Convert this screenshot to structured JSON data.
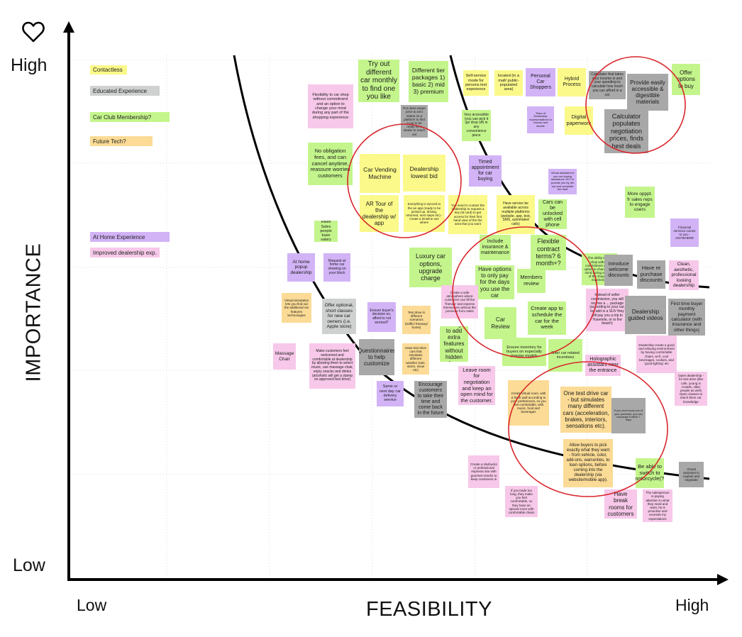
{
  "axes": {
    "y_title": "IMPORTANCE",
    "x_title": "FEASIBILITY",
    "y_high": "High",
    "y_low": "Low",
    "x_low": "Low",
    "x_high": "High",
    "corner_icon": "heart-outline-icon"
  },
  "legend": [
    "Contactless",
    "Educated Experience",
    "Car Club Membership?",
    "Future Tech?",
    "At Home Experience",
    "Improved dealership exp."
  ],
  "colors": {
    "y": "#fbf98a",
    "g": "#cfd0d0",
    "gr": "#a8a8a8",
    "lime": "#c4f58c",
    "o": "#fbdb95",
    "p": "#d2b3f6",
    "pk": "#f7c8e9",
    "lineBlack": "#000000",
    "circleRed": "#d8262c",
    "grid": "#dcdcdc"
  },
  "notes": [
    {
      "t": "Try out different car monthly to find one you like",
      "c": "lime"
    },
    {
      "t": "Different tier packages 1) basic 2) mid 3) premium",
      "c": "lime"
    },
    {
      "t": "Self-service mode for persons test experience",
      "c": "y"
    },
    {
      "t": "located (in a mall/ public-populated area)",
      "c": "y"
    },
    {
      "t": "Personal Car Shoppers",
      "c": "p"
    },
    {
      "t": "Hybrid Process",
      "c": "y"
    },
    {
      "t": "Calculator that takes your income in and your spending to calculate how much you can afford in a car",
      "c": "gr"
    },
    {
      "t": "Provide easily accessible & digestible materials",
      "c": "gr"
    },
    {
      "t": "Offer options to buy",
      "c": "lime"
    },
    {
      "t": "Flexibility to car shop without commitment and an option to change your mind during any part of the shopping experience",
      "c": "pk"
    },
    {
      "t": "Put down target price & zero status on a platform to find a car to be ready for a dealer to reach out",
      "c": "gr"
    },
    {
      "t": "Very accessible (you can pick it up/ drop off) in any convenience place",
      "c": "lime"
    },
    {
      "t": "Team of Dealership representatives to choose and decide",
      "c": "p"
    },
    {
      "t": "Digital paperwork",
      "c": "y"
    },
    {
      "t": "Calculator populates negotiation prices, finds best deals",
      "c": "gr"
    },
    {
      "t": "No obligation fees, and can cancel anytime, reassure worried customers",
      "c": "lime"
    },
    {
      "t": "Car Vending Machine",
      "c": "y"
    },
    {
      "t": "Dealership lowest bid",
      "c": "y"
    },
    {
      "t": "Timed appointment for car buying",
      "c": "p"
    },
    {
      "t": "Virtual assistant to you car buying assistance 24/7 to provide you by the car and complete the deal",
      "c": "p"
    },
    {
      "t": "AR Tour of the dealership w/ app",
      "c": "y"
    },
    {
      "t": "Everything is synced to the an app (ready to be picked up, driving, returned, next steps etc) - create a timeline see where",
      "c": "y"
    },
    {
      "t": "You need to contact the dealership to request a key (id card) to get access for their first hand view of the the area that you want",
      "c": "y"
    },
    {
      "t": "Have service be available across multiple platforms (website, app, text, SMS, automated calls)",
      "c": "y"
    },
    {
      "t": "Cars can be unlocked with cell phone",
      "c": "lime"
    },
    {
      "t": "More opppt. fr sales reps to engage users",
      "c": "lime"
    },
    {
      "t": "Raise Sales people base salary",
      "c": "lime"
    },
    {
      "t": "Include insurance & maintenance",
      "c": "lime"
    },
    {
      "t": "Flexible contract terms? 6 month+?",
      "c": "lime"
    },
    {
      "t": "Financial services comes to you - ANYWHERE",
      "c": "p"
    },
    {
      "t": "At home popup dealership",
      "c": "p"
    },
    {
      "t": "Request at home car showing on your block",
      "c": "p"
    },
    {
      "t": "Luxury car options, upgrade charge",
      "c": "lime"
    },
    {
      "t": "Have options to only pay for the days you use the car",
      "c": "lime"
    },
    {
      "t": "Members review",
      "c": "lime"
    },
    {
      "t": "The ability to car shop without commitment and an option to change your mind during any part of the shopping experience",
      "c": "lime"
    },
    {
      "t": "Introduce welcome discounts",
      "c": "gr"
    },
    {
      "t": "Have re purchase discounts",
      "c": "gr"
    },
    {
      "t": "Clean, aesthetic, professional looking dealership",
      "c": "pk"
    },
    {
      "t": "Virtual simulation lets you find out the additional car features technologies",
      "c": "o"
    },
    {
      "t": "Offer optional, short classes for new car owners (i.e. Apple store)",
      "c": "g"
    },
    {
      "t": "Ensure buyer's decision so, afford is not worried?",
      "c": "p"
    },
    {
      "t": "Test drive in different scenarios (traffic/ freeway/ home)",
      "c": "o"
    },
    {
      "t": "Create a safe atmosphere where customers can fill the 'friendly' and express themselves without the pressure from sales",
      "c": "pk"
    },
    {
      "t": "Car Review",
      "c": "lime"
    },
    {
      "t": "Create app to schedule the car for the week",
      "c": "lime"
    },
    {
      "t": "Instead of seller commission, you will receive a ... package (according to your car, list add is a SUV they will pay you a trip to Yosemite, or to the beach)",
      "c": "pk"
    },
    {
      "t": "Dealership guided videos",
      "c": "gr"
    },
    {
      "t": "First time buyer monthly payment calculator (with insurance and other things)",
      "c": "gr"
    },
    {
      "t": "Massage Chair",
      "c": "pk"
    },
    {
      "t": "Make customers feel welcomed and comfortable at dealership by allowing them to select music, use massage chair, enjoy snacks and drinks (alcoholic will get a stamp on approved test drive)",
      "c": "pk"
    },
    {
      "t": "Questionnaires to help customize",
      "c": "gr"
    },
    {
      "t": "Have test drive cars that simulates different weather (rain, storm, snow etc)",
      "c": "o"
    },
    {
      "t": "Savings to add extra features without hidden fees",
      "c": "lime"
    },
    {
      "t": "Ensure inventory for buyers on especially popular models",
      "c": "lime"
    },
    {
      "t": "Offer car related incentives",
      "c": "lime"
    },
    {
      "t": "Holographic assistant near the entrance",
      "c": "pk"
    },
    {
      "t": "Dealership create a good and relaxing environment by having comfortable chairs, wi-fi, cool beverages, cookies, and 'good lighting' etc",
      "c": "pk"
    },
    {
      "t": "Same or next day car delivery service",
      "c": "p"
    },
    {
      "t": "Encourage customers to take their time and come back in the future",
      "c": "gr"
    },
    {
      "t": "Leave room for negotiation and keep an open mind for the customer.",
      "c": "pk"
    },
    {
      "t": "Create virtual room, with a fresh wall according to your preferences, so you feel comfortable, with music, food and beverages",
      "c": "o"
    },
    {
      "t": "One test drive car - but simulates many different cars (acceleration, brakes, interiors, sensations etc).",
      "c": "o"
    },
    {
      "t": "If you don't know one of your purchase, you can exchange it within 7 days",
      "c": "gr"
    },
    {
      "t": "Open dealership - for test drive (like cafe, young in crowds, older people as well) Open classes to teach them car knowledge",
      "c": "pk"
    },
    {
      "t": "Allow buyers to pick exactly what they want - from vehicle, color, add-ons, warranties, to loan options, before coming into the dealership (via website/mobile app).",
      "c": "o"
    },
    {
      "t": "Create a starbucks or professional espresso bar with gourmet snacks to keep customers in",
      "c": "pk"
    },
    {
      "t": "Be able to switch to motorcycle(?)",
      "c": "lime"
    },
    {
      "t": "Virtual assistant to explain and negotiate",
      "c": "gr"
    },
    {
      "t": "If you trade too long, they make you feel comfortable, so they have an special room with comfortable chairs",
      "c": "pk"
    },
    {
      "t": "Have break rooms for customers",
      "c": "pk"
    },
    {
      "t": "The salesperson is paying attention to what they need and want, he is proactive and exceeds my expectations",
      "c": "pk"
    }
  ]
}
